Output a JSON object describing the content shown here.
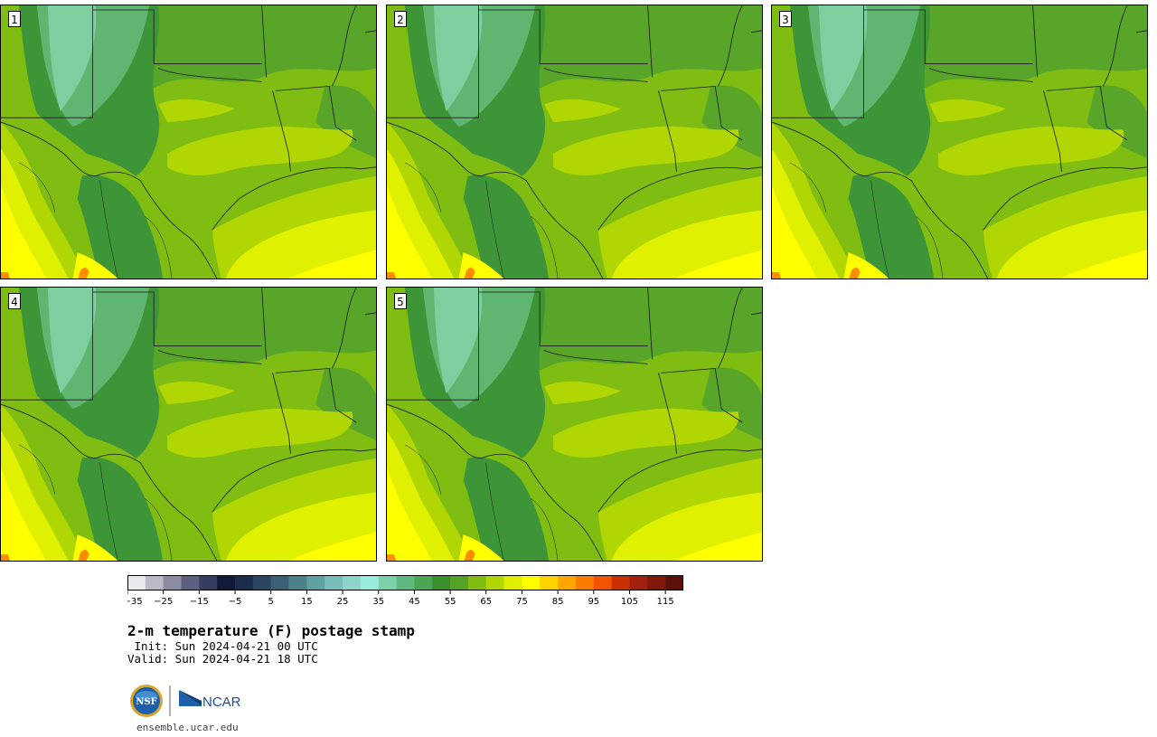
{
  "panels": [
    {
      "label": "1"
    },
    {
      "label": "2"
    },
    {
      "label": "3"
    },
    {
      "label": "4"
    },
    {
      "label": "5"
    }
  ],
  "colorbar": {
    "ticks": [
      "−35",
      "−25",
      "−15",
      "−5",
      "5",
      "15",
      "25",
      "35",
      "45",
      "55",
      "65",
      "75",
      "85",
      "95",
      "105",
      "115"
    ],
    "colors": [
      "#e9e9ee",
      "#b9b9c8",
      "#8b8ca4",
      "#5c6080",
      "#363e62",
      "#121a38",
      "#1c2d4c",
      "#2b4662",
      "#3a6076",
      "#4c8088",
      "#5fa0a0",
      "#79bcba",
      "#8fd4cc",
      "#98ecdc",
      "#7bd2aa",
      "#5fba80",
      "#4aa654",
      "#3a8e2c",
      "#54a226",
      "#82be12",
      "#b2d804",
      "#e0ee00",
      "#ffff00",
      "#ffd200",
      "#ffa600",
      "#ff7a00",
      "#f25300",
      "#c83000",
      "#a2200e",
      "#80180c",
      "#5c1108"
    ]
  },
  "colors": {
    "dark_green": "#3d9537",
    "mid_green": "#58a52a",
    "green": "#7fbd12",
    "yellow_green": "#b0d604",
    "lime": "#dff000",
    "yellow": "#ffff00",
    "teal_green": "#5fb670",
    "pale_teal": "#7ccf9e",
    "orange": "#ff8c00"
  },
  "title": "2-m temperature (F) postage stamp",
  "init": " Init: Sun 2024-04-21 00 UTC",
  "valid": "Valid: Sun 2024-04-21 18 UTC",
  "logo": {
    "nsf": "NSF",
    "ncar": "NCAR"
  },
  "footer": "ensemble.ucar.edu"
}
